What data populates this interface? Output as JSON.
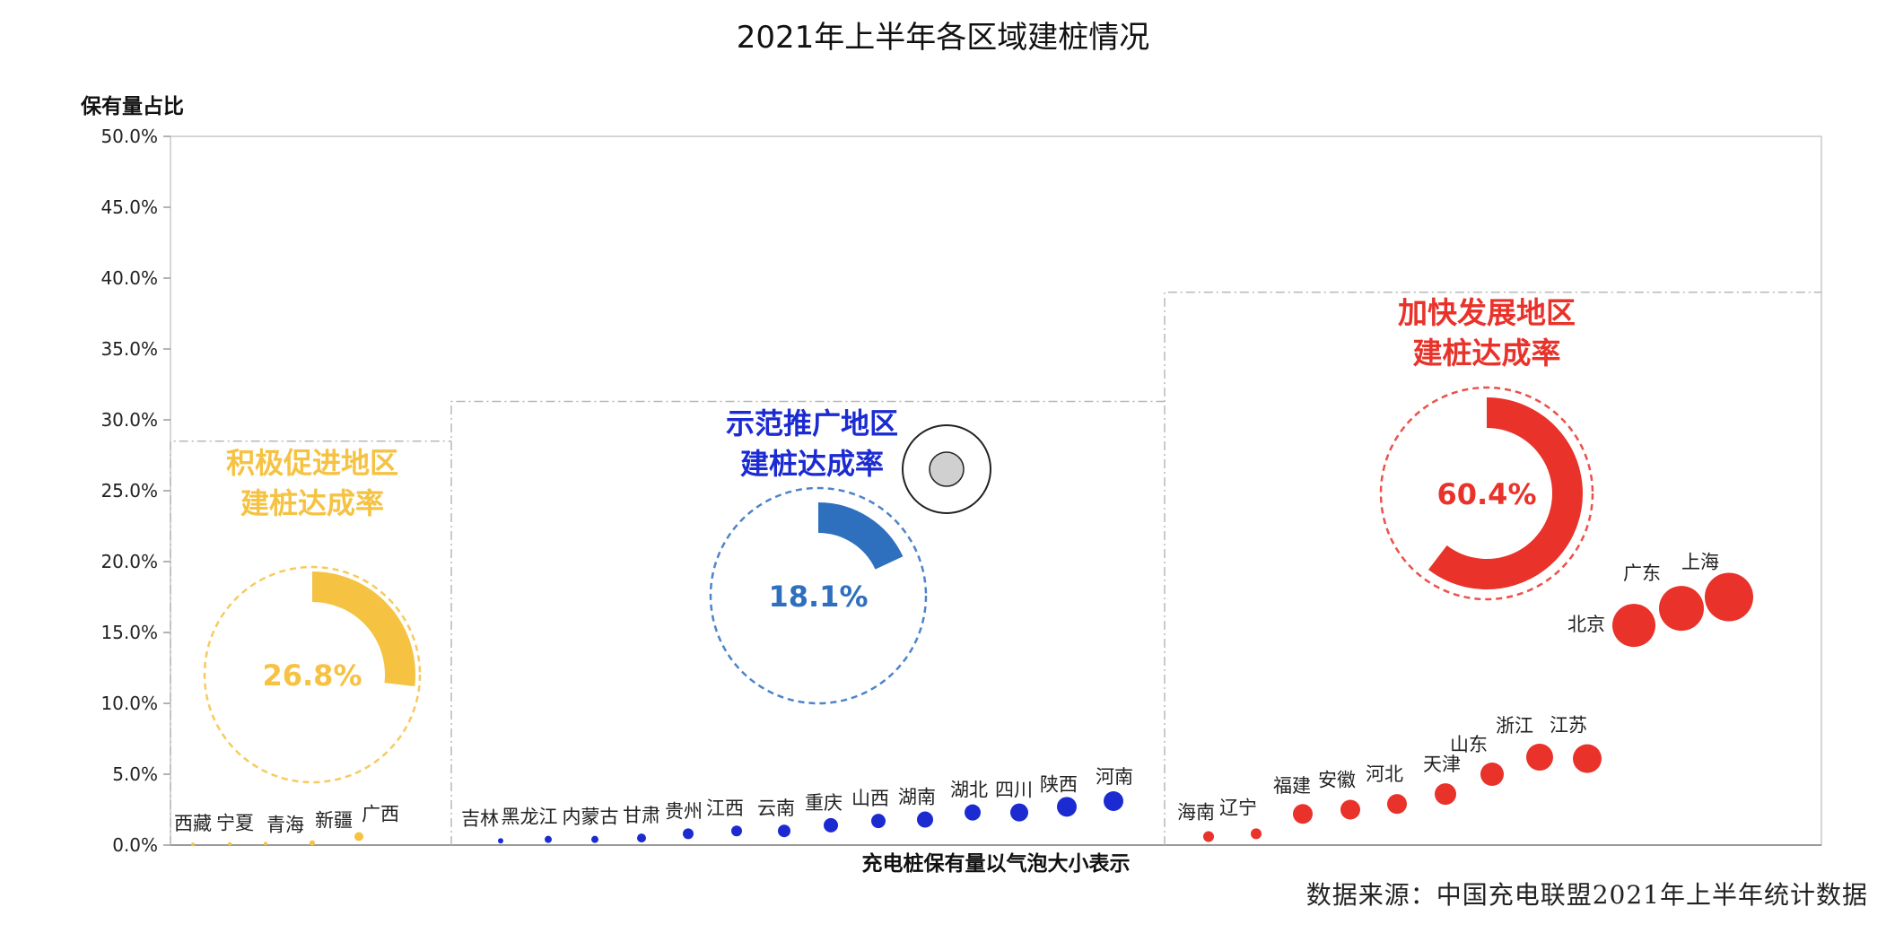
{
  "chart_data": {
    "type": "scatter",
    "title": "2021年上半年各区域建桩情况",
    "ylabel": "保有量占比",
    "xlabel": "充电桩保有量以气泡大小表示",
    "source": "数据来源：中国充电联盟2021年上半年统计数据",
    "ylim": [
      0,
      50
    ],
    "y_ticks": [
      "0.0%",
      "5.0%",
      "10.0%",
      "15.0%",
      "20.0%",
      "25.0%",
      "30.0%",
      "35.0%",
      "40.0%",
      "45.0%",
      "50.0%"
    ],
    "y_tick_values": [
      0,
      5,
      10,
      15,
      20,
      25,
      30,
      35,
      40,
      45,
      50
    ],
    "regions": [
      {
        "key": "active",
        "title_line1": "积极促进地区",
        "title_line2": "建桩达成率",
        "rate_label": "26.8%",
        "rate": 26.8,
        "color": "#F5C242",
        "box_top": 28.5,
        "points": [
          {
            "label": "西藏",
            "y": 0.05
          },
          {
            "label": "宁夏",
            "y": 0.08
          },
          {
            "label": "青海",
            "y": 0.1
          },
          {
            "label": "新疆",
            "y": 0.15
          },
          {
            "label": "广西",
            "y": 0.6
          }
        ]
      },
      {
        "key": "demo",
        "title_line1": "示范推广地区",
        "title_line2": "建桩达成率",
        "rate_label": "18.1%",
        "rate": 18.1,
        "color": "#1C2BD1",
        "ring_color": "#2E6FBE",
        "box_top": 31.3,
        "points": [
          {
            "label": "吉林",
            "y": 0.3
          },
          {
            "label": "黑龙江",
            "y": 0.4
          },
          {
            "label": "内蒙古",
            "y": 0.4
          },
          {
            "label": "甘肃",
            "y": 0.5
          },
          {
            "label": "贵州",
            "y": 0.8
          },
          {
            "label": "江西",
            "y": 1.0
          },
          {
            "label": "云南",
            "y": 1.0
          },
          {
            "label": "重庆",
            "y": 1.4
          },
          {
            "label": "山西",
            "y": 1.7
          },
          {
            "label": "湖南",
            "y": 1.8
          },
          {
            "label": "湖北",
            "y": 2.3
          },
          {
            "label": "四川",
            "y": 2.3
          },
          {
            "label": "陕西",
            "y": 2.7
          },
          {
            "label": "河南",
            "y": 3.1
          }
        ]
      },
      {
        "key": "accel",
        "title_line1": "加快发展地区",
        "title_line2": "建桩达成率",
        "rate_label": "60.4%",
        "rate": 60.4,
        "color": "#E8322A",
        "box_top": 39.0,
        "points": [
          {
            "label": "海南",
            "y": 0.6
          },
          {
            "label": "辽宁",
            "y": 0.8
          },
          {
            "label": "福建",
            "y": 2.2
          },
          {
            "label": "安徽",
            "y": 2.5
          },
          {
            "label": "河北",
            "y": 2.9
          },
          {
            "label": "天津",
            "y": 3.6
          },
          {
            "label": "山东",
            "y": 5.0
          },
          {
            "label": "浙江",
            "y": 6.2
          },
          {
            "label": "江苏",
            "y": 6.1
          },
          {
            "label": "北京",
            "y": 15.5
          },
          {
            "label": "广东",
            "y": 16.7
          },
          {
            "label": "上海",
            "y": 17.5
          }
        ]
      }
    ]
  }
}
